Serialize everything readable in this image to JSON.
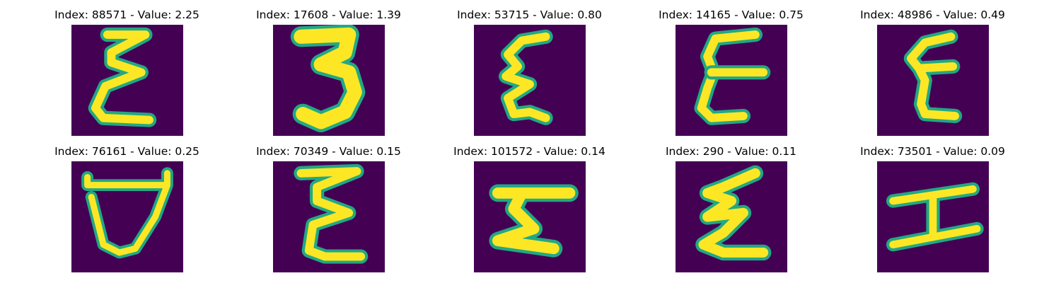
{
  "palette": {
    "background": "#440154",
    "low": "#2a788e",
    "mid": "#22a884",
    "high": "#fde725"
  },
  "panels": [
    {
      "index": "88571",
      "value": "2.25",
      "title": "Index: 88571 - Value: 2.25",
      "glyph": "curly-e-digit"
    },
    {
      "index": "17608",
      "value": "1.39",
      "title": "Index: 17608 - Value: 1.39",
      "glyph": "digit-three"
    },
    {
      "index": "53715",
      "value": "0.80",
      "title": "Index: 53715 - Value: 0.80",
      "glyph": "curly-e-digit"
    },
    {
      "index": "14165",
      "value": "0.75",
      "title": "Index: 14165 - Value: 0.75",
      "glyph": "curly-e-digit"
    },
    {
      "index": "48986",
      "value": "0.49",
      "title": "Index: 48986 - Value: 0.49",
      "glyph": "curly-e-digit"
    },
    {
      "index": "76161",
      "value": "0.25",
      "title": "Index: 76161 - Value: 0.25",
      "glyph": "cup-shape"
    },
    {
      "index": "70349",
      "value": "0.15",
      "title": "Index: 70349 - Value: 0.15",
      "glyph": "curly-e-digit"
    },
    {
      "index": "101572",
      "value": "0.14",
      "title": "Index: 101572 - Value: 0.14",
      "glyph": "zigzag-shape"
    },
    {
      "index": "290",
      "value": "0.11",
      "title": "Index: 290 - Value: 0.11",
      "glyph": "curly-e-digit"
    },
    {
      "index": "73501",
      "value": "0.09",
      "title": "Index: 73501 - Value: 0.09",
      "glyph": "i-beam-shape"
    }
  ]
}
